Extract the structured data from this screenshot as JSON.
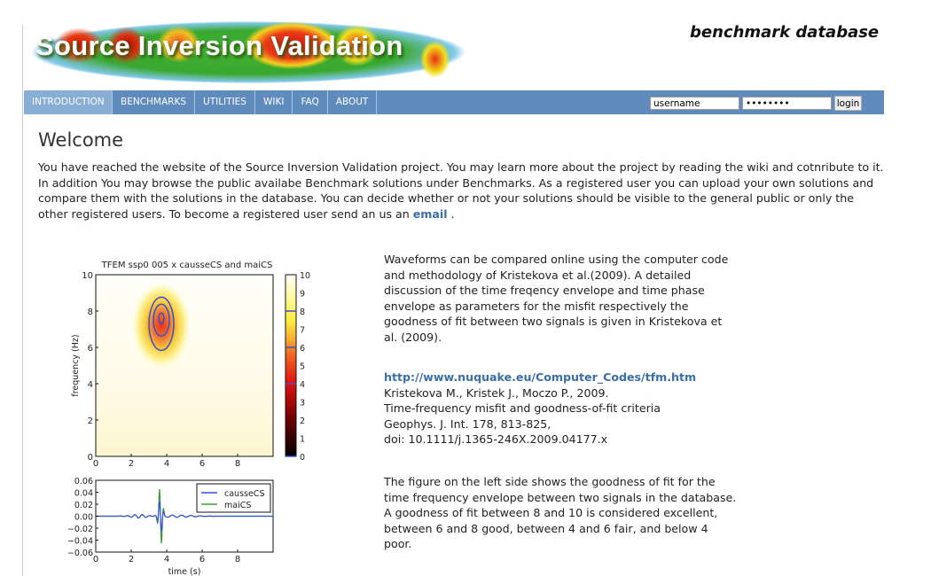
{
  "header": {
    "site_title": "Source Inversion Validation",
    "tagline": "benchmark database"
  },
  "nav": {
    "items": [
      {
        "label": "INTRODUCTION",
        "active": true
      },
      {
        "label": "BENCHMARKS"
      },
      {
        "label": "UTILITIES"
      },
      {
        "label": "WIKI"
      },
      {
        "label": "FAQ"
      },
      {
        "label": "ABOUT"
      }
    ]
  },
  "login": {
    "username_value": "username",
    "password_value": "••••••••",
    "button_label": "login"
  },
  "main": {
    "title": "Welcome",
    "intro_text": "You have reached the website of the Source Inversion Validation project. You may learn more about the project by reading the wiki and cotnribute to it. In addition You may browse the public availabe Benchmark solutions under Benchmarks. As a registered user you can upload your own solutions and compare them with the solutions in the database. You can decide whether or not your solutions should be visible to the general public or only the other registered users. To become a registered user send an us an ",
    "intro_link": "email",
    "intro_end": " .",
    "waveforms_text": "Waveforms can be compared online using the computer code and methodology of Kristekova et al.(2009). A detailed discussion of the time freqency envelope and time phase envelope as parameters for the misfit respectively the goodness of fit between two signals is given in Kristekova et al. (2009).",
    "reference": {
      "link": "http://www.nuquake.eu/Computer_Codes/tfm.htm",
      "lines": [
        "Kristekova M., Kristek J., Moczo P., 2009.",
        "Time-frequency misfit and goodness-of-fit criteria",
        "Geophys. J. Int. 178, 813-825,",
        "doi: 10.1111/j.1365-246X.2009.04177.x"
      ]
    },
    "figure_text": "The figure on the left side shows the goodness of fit for the time frequency envelope between two signals in the database. A goodness of fit between 8 and 10 is considered excellent, between 6 and 8 good, between 4 and 6 fair, and below 4 poor."
  },
  "chart_data": [
    {
      "type": "heatmap",
      "title": "TFEM ssp0 005 x causseCS and maiCS",
      "xlabel": "",
      "ylabel": "frequency (Hz)",
      "xlim": [
        0,
        10
      ],
      "ylim": [
        0,
        10
      ],
      "xticks": [
        "0",
        "2",
        "4",
        "6",
        "8"
      ],
      "yticks": [
        "0",
        "2",
        "4",
        "6",
        "8",
        "10"
      ],
      "peak": {
        "x": 3.7,
        "y": 7.5,
        "value": 4
      },
      "contour_levels": [
        4,
        6,
        8
      ],
      "colorbar": {
        "range": [
          0,
          10
        ],
        "ticks": [
          "0",
          "1",
          "2",
          "3",
          "4",
          "5",
          "6",
          "7",
          "8",
          "9",
          "10"
        ]
      }
    },
    {
      "type": "line",
      "xlabel": "time (s)",
      "ylabel": "",
      "xlim": [
        0,
        10
      ],
      "ylim": [
        -0.06,
        0.06
      ],
      "xticks": [
        "0",
        "2",
        "4",
        "6",
        "8"
      ],
      "yticks": [
        "0.06",
        "0.04",
        "0.02",
        "0.00",
        "−0.02",
        "−0.04",
        "−0.06"
      ],
      "legend": "top-right",
      "series": [
        {
          "name": "causseCS",
          "color": "#3a4fe0",
          "peak_max": 0.028,
          "peak_min": -0.028
        },
        {
          "name": "maiCS",
          "color": "#3a9a3a",
          "peak_max": 0.05,
          "peak_min": -0.055
        }
      ]
    }
  ]
}
